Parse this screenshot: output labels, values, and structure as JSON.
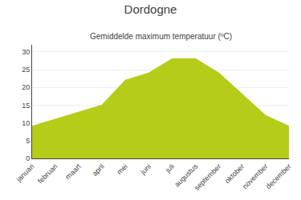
{
  "chart_data": {
    "type": "area",
    "title": "Dordogne",
    "subtitle": "Gemiddelde maximum temperatuur (ºC)",
    "categories": [
      "januari",
      "februari",
      "maart",
      "april",
      "mei",
      "juni",
      "juli",
      "augustus",
      "september",
      "oktober",
      "november",
      "december"
    ],
    "values": [
      9,
      11,
      13,
      15,
      22,
      24,
      28,
      28,
      24,
      18,
      12,
      9
    ],
    "color": "#b5cc18",
    "ylim": [
      0,
      32
    ],
    "yticks": [
      0,
      5,
      10,
      15,
      20,
      25,
      30
    ],
    "grid": true
  }
}
